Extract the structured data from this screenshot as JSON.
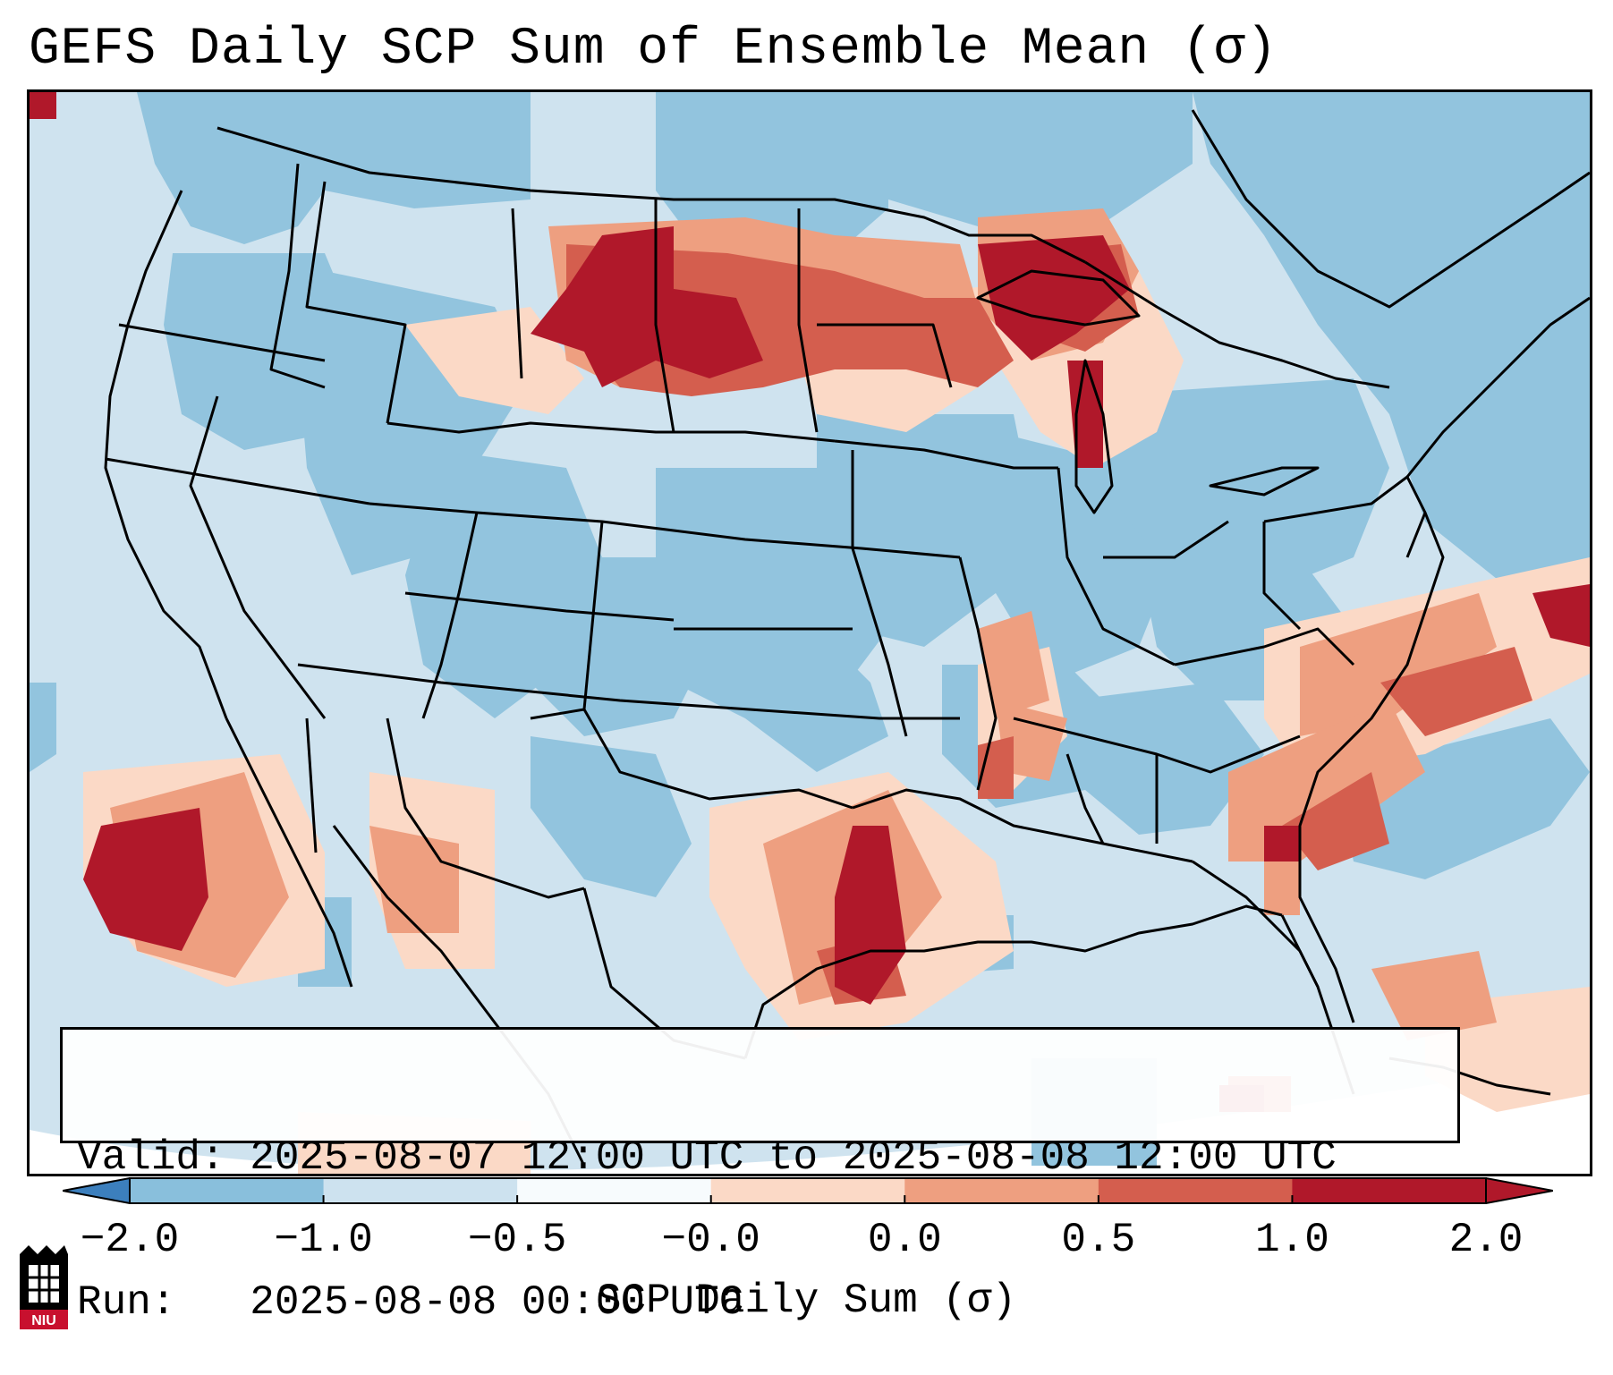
{
  "title": "GEFS Daily SCP Sum of Ensemble Mean (σ)",
  "info": {
    "valid_label": "Valid:",
    "valid_value": "2025-08-07 12:00 UTC to 2025-08-08 12:00 UTC",
    "run_label": "Run:",
    "run_value": "2025-08-08 00:00 UTC"
  },
  "colorbar": {
    "label": "SCP Daily Sum (σ)",
    "ticks": [
      "−2.0",
      "−1.0",
      "−0.5",
      "−0.0",
      "0.0",
      "0.5",
      "1.0",
      "2.0"
    ],
    "colors": [
      "#3c7fbd",
      "#89bfdc",
      "#cde2ef",
      "#f7fbfd",
      "#fbd9c6",
      "#ee9f80",
      "#d45e4e",
      "#b0182a"
    ]
  },
  "logo": {
    "text": "NIU"
  },
  "map": {
    "background_color": "#cfe3ef",
    "ocean_color": "#d3e6f1",
    "land_low_color": "#92c4de",
    "region_descriptions": []
  }
}
